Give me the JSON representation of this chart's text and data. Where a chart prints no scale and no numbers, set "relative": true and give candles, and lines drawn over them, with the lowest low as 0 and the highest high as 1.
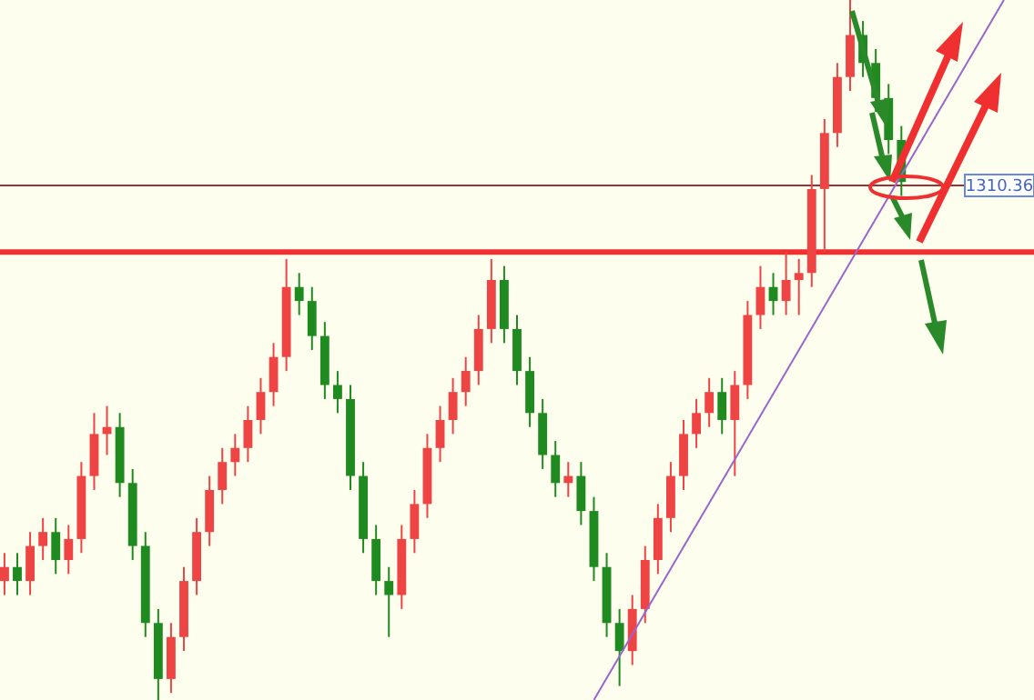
{
  "chart_data": {
    "type": "candlestick",
    "relative": true,
    "categories": [
      null,
      null,
      null,
      null,
      null,
      null,
      null,
      null,
      null,
      null,
      null,
      null,
      null,
      null,
      null,
      null,
      null,
      null,
      null,
      null,
      null,
      null,
      null,
      null,
      null,
      null,
      null,
      null,
      null,
      null,
      null,
      null,
      null,
      null,
      null,
      null,
      null,
      null,
      null,
      null,
      null,
      null,
      null,
      null,
      null,
      null,
      null,
      null,
      null,
      null,
      null,
      null,
      null,
      null,
      null,
      null,
      null,
      null,
      null,
      null,
      null,
      null,
      null,
      null,
      null,
      null,
      null,
      null,
      null,
      null,
      null,
      null,
      null,
      null,
      null,
      null,
      null,
      null,
      null,
      null,
      null
    ],
    "ohlc": [
      [
        0.17,
        0.21,
        0.15,
        0.19
      ],
      [
        0.19,
        0.21,
        0.15,
        0.17
      ],
      [
        0.17,
        0.24,
        0.15,
        0.22
      ],
      [
        0.22,
        0.26,
        0.2,
        0.24
      ],
      [
        0.24,
        0.26,
        0.18,
        0.2
      ],
      [
        0.2,
        0.25,
        0.18,
        0.23
      ],
      [
        0.23,
        0.34,
        0.21,
        0.32
      ],
      [
        0.32,
        0.41,
        0.3,
        0.38
      ],
      [
        0.38,
        0.42,
        0.35,
        0.39
      ],
      [
        0.39,
        0.41,
        0.29,
        0.31
      ],
      [
        0.31,
        0.33,
        0.2,
        0.22
      ],
      [
        0.22,
        0.24,
        0.09,
        0.11
      ],
      [
        0.11,
        0.13,
        0,
        0.03
      ],
      [
        0.03,
        0.11,
        0.01,
        0.09
      ],
      [
        0.09,
        0.19,
        0.07,
        0.17
      ],
      [
        0.17,
        0.26,
        0.15,
        0.24
      ],
      [
        0.24,
        0.32,
        0.22,
        0.3
      ],
      [
        0.3,
        0.36,
        0.28,
        0.34
      ],
      [
        0.34,
        0.38,
        0.32,
        0.36
      ],
      [
        0.36,
        0.42,
        0.34,
        0.4
      ],
      [
        0.4,
        0.46,
        0.38,
        0.44
      ],
      [
        0.44,
        0.51,
        0.42,
        0.49
      ],
      [
        0.49,
        0.63,
        0.47,
        0.59
      ],
      [
        0.59,
        0.61,
        0.55,
        0.57
      ],
      [
        0.57,
        0.59,
        0.5,
        0.52
      ],
      [
        0.52,
        0.54,
        0.43,
        0.45
      ],
      [
        0.45,
        0.47,
        0.41,
        0.43
      ],
      [
        0.43,
        0.45,
        0.3,
        0.32
      ],
      [
        0.32,
        0.34,
        0.21,
        0.23
      ],
      [
        0.23,
        0.25,
        0.15,
        0.17
      ],
      [
        0.17,
        0.19,
        0.09,
        0.15
      ],
      [
        0.15,
        0.25,
        0.13,
        0.23
      ],
      [
        0.23,
        0.3,
        0.21,
        0.28
      ],
      [
        0.28,
        0.38,
        0.26,
        0.36
      ],
      [
        0.36,
        0.42,
        0.34,
        0.4
      ],
      [
        0.4,
        0.46,
        0.38,
        0.44
      ],
      [
        0.44,
        0.49,
        0.42,
        0.47
      ],
      [
        0.47,
        0.55,
        0.45,
        0.53
      ],
      [
        0.53,
        0.63,
        0.51,
        0.6
      ],
      [
        0.6,
        0.62,
        0.51,
        0.53
      ],
      [
        0.53,
        0.55,
        0.45,
        0.47
      ],
      [
        0.47,
        0.49,
        0.39,
        0.41
      ],
      [
        0.41,
        0.43,
        0.33,
        0.35
      ],
      [
        0.35,
        0.37,
        0.29,
        0.31
      ],
      [
        0.31,
        0.34,
        0.29,
        0.32
      ],
      [
        0.32,
        0.34,
        0.25,
        0.27
      ],
      [
        0.27,
        0.29,
        0.17,
        0.19
      ],
      [
        0.19,
        0.21,
        0.09,
        0.11
      ],
      [
        0.11,
        0.13,
        0.02,
        0.07
      ],
      [
        0.07,
        0.15,
        0.05,
        0.13
      ],
      [
        0.13,
        0.22,
        0.11,
        0.2
      ],
      [
        0.2,
        0.28,
        0.18,
        0.26
      ],
      [
        0.26,
        0.34,
        0.24,
        0.32
      ],
      [
        0.32,
        0.4,
        0.3,
        0.38
      ],
      [
        0.38,
        0.43,
        0.36,
        0.41
      ],
      [
        0.41,
        0.46,
        0.39,
        0.44
      ],
      [
        0.44,
        0.46,
        0.38,
        0.4
      ],
      [
        0.4,
        0.47,
        0.32,
        0.45
      ],
      [
        0.45,
        0.57,
        0.43,
        0.55
      ],
      [
        0.55,
        0.62,
        0.53,
        0.59
      ],
      [
        0.59,
        0.61,
        0.55,
        0.57
      ],
      [
        0.57,
        0.64,
        0.55,
        0.6
      ],
      [
        0.6,
        0.63,
        0.55,
        0.61
      ],
      [
        0.61,
        0.75,
        0.59,
        0.73
      ],
      [
        0.73,
        0.83,
        0.64,
        0.81
      ],
      [
        0.81,
        0.91,
        0.79,
        0.89
      ],
      [
        0.89,
        1,
        0.87,
        0.95
      ],
      [
        0.95,
        0.97,
        0.89,
        0.91
      ],
      [
        0.91,
        0.93,
        0.84,
        0.86
      ],
      [
        0.86,
        0.88,
        0.78,
        0.8
      ],
      [
        0.8,
        0.82,
        0.72,
        0.74
      ],
      null,
      null,
      null,
      null,
      null,
      null,
      null,
      null,
      null,
      null
    ],
    "series": [
      {
        "type": "line",
        "color": "#9966cc",
        "values": [
          null,
          null,
          null,
          null,
          null,
          null,
          null,
          null,
          null,
          null,
          null,
          null,
          null,
          null,
          null,
          null,
          null,
          null,
          null,
          null,
          null,
          null,
          null,
          null,
          null,
          null,
          null,
          null,
          null,
          null,
          null,
          null,
          null,
          null,
          null,
          null,
          null,
          null,
          null,
          null,
          null,
          null,
          null,
          null,
          null,
          null,
          0,
          null,
          null,
          null,
          null,
          null,
          null,
          null,
          null,
          null,
          null,
          null,
          null,
          null,
          null,
          null,
          null,
          null,
          null,
          null,
          null,
          null,
          null,
          null,
          null,
          null,
          null,
          null,
          null,
          null,
          null,
          null,
          1,
          null,
          null
        ]
      }
    ],
    "ref_lines": [
      {
        "axis": "y",
        "value": 0.64,
        "color": "#f03030"
      },
      {
        "axis": "y",
        "value": 0.735,
        "color": "#993333"
      }
    ],
    "annotations": [
      "1310.36"
    ]
  }
}
